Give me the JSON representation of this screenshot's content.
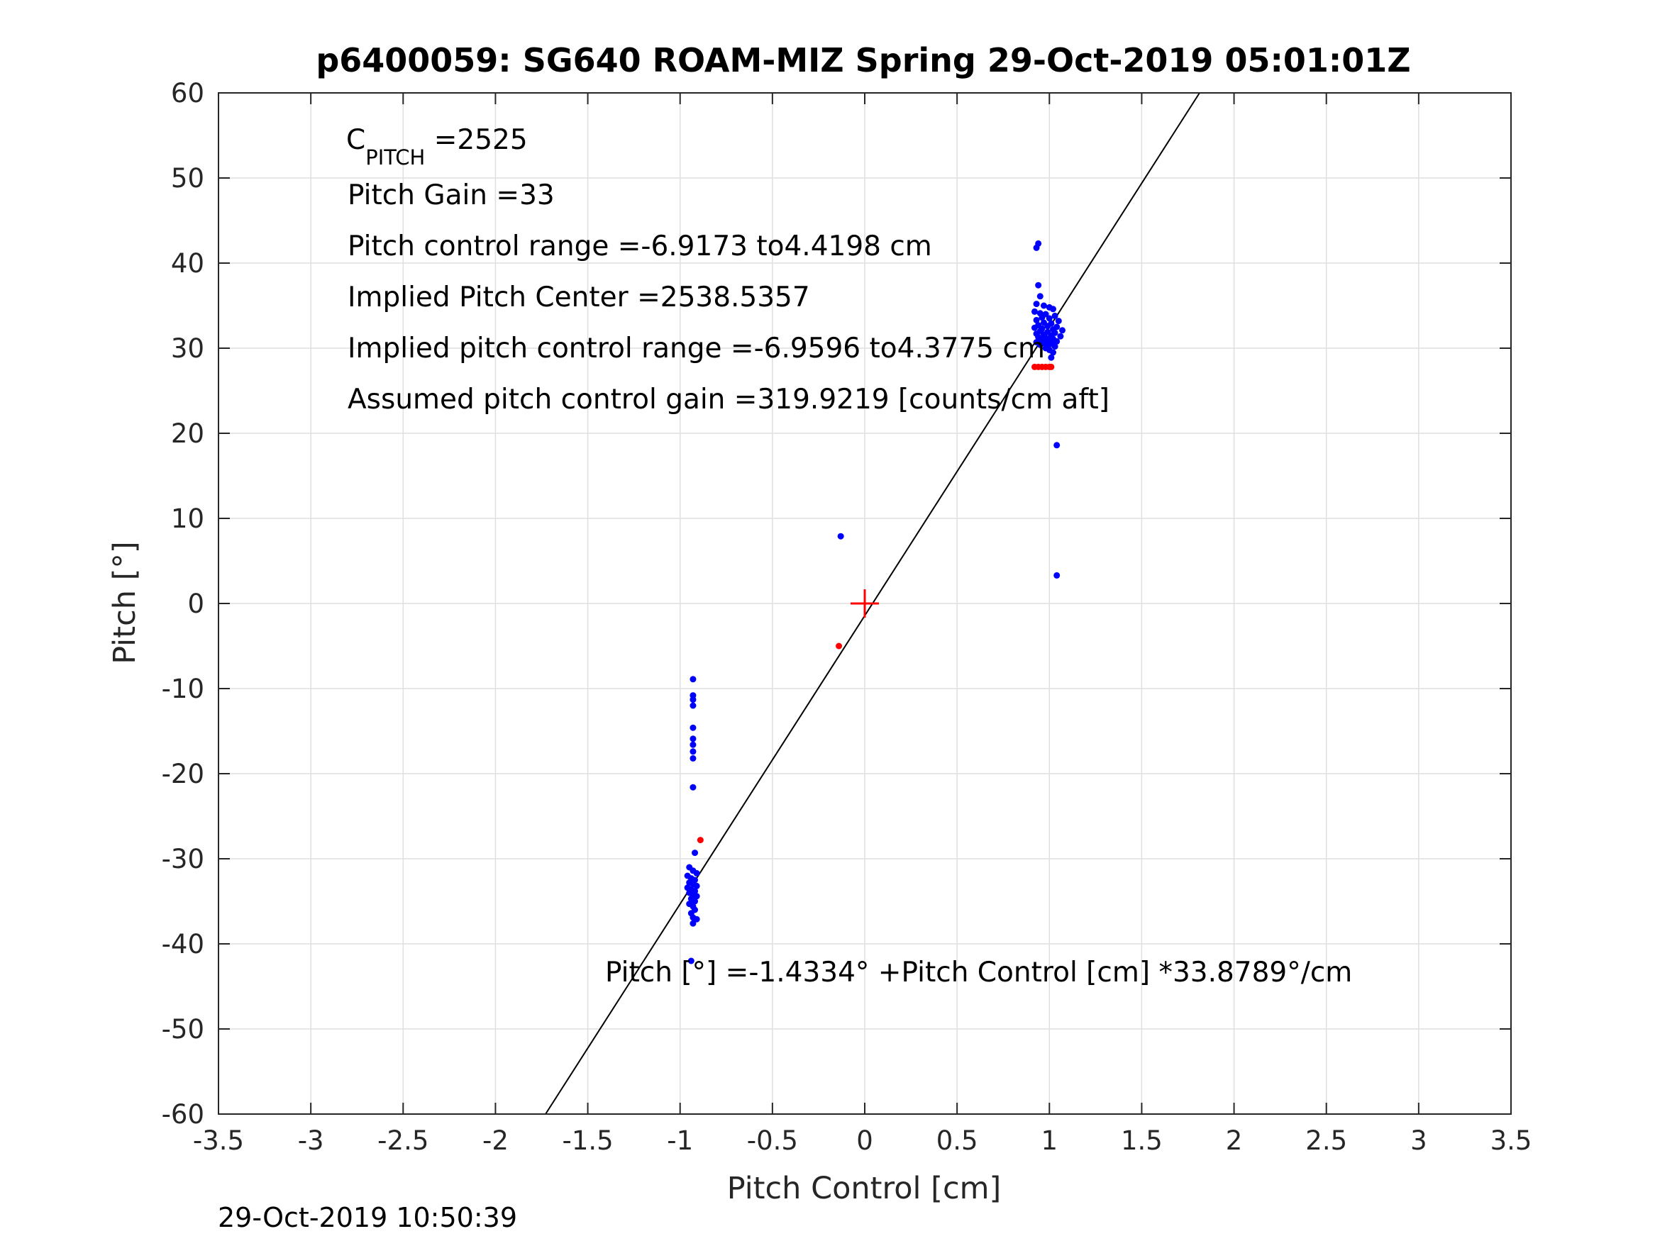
{
  "chart_data": {
    "type": "scatter",
    "title": "p6400059: SG640 ROAM-MIZ Spring 29-Oct-2019 05:01:01Z",
    "xlabel": "Pitch Control [cm]",
    "ylabel": "Pitch [°]",
    "xlim": [
      -3.5,
      3.5
    ],
    "ylim": [
      -60,
      60
    ],
    "grid": true,
    "x_ticks": [
      -3.5,
      -3,
      -2.5,
      -2,
      -1.5,
      -1,
      -0.5,
      0,
      0.5,
      1,
      1.5,
      2,
      2.5,
      3,
      3.5
    ],
    "y_ticks": [
      -60,
      -50,
      -40,
      -30,
      -20,
      -10,
      0,
      10,
      20,
      30,
      40,
      50,
      60
    ],
    "x_tick_labels": [
      "-3.5",
      "-3",
      "-2.5",
      "-2",
      "-1.5",
      "-1",
      "-0.5",
      "0",
      "0.5",
      "1",
      "1.5",
      "2",
      "2.5",
      "3",
      "3.5"
    ],
    "y_tick_labels": [
      "-60",
      "-50",
      "-40",
      "-30",
      "-20",
      "-10",
      "0",
      "10",
      "20",
      "30",
      "40",
      "50",
      "60"
    ],
    "series": [
      {
        "color": "#0000ff",
        "points": [
          [
            0.94,
            42.3
          ],
          [
            0.93,
            41.8
          ],
          [
            0.94,
            37.4
          ],
          [
            0.95,
            36.1
          ],
          [
            0.93,
            35.2
          ],
          [
            0.97,
            35.0
          ],
          [
            1.0,
            34.8
          ],
          [
            1.02,
            34.6
          ],
          [
            0.92,
            34.3
          ],
          [
            0.95,
            34.1
          ],
          [
            0.98,
            34.0
          ],
          [
            1.03,
            33.8
          ],
          [
            0.96,
            33.6
          ],
          [
            1.0,
            33.5
          ],
          [
            0.93,
            33.3
          ],
          [
            1.05,
            33.2
          ],
          [
            0.97,
            33.0
          ],
          [
            1.01,
            32.9
          ],
          [
            0.94,
            32.7
          ],
          [
            0.99,
            32.6
          ],
          [
            1.04,
            32.5
          ],
          [
            0.92,
            32.4
          ],
          [
            0.96,
            32.3
          ],
          [
            1.02,
            32.2
          ],
          [
            1.07,
            32.1
          ],
          [
            0.95,
            32.0
          ],
          [
            0.99,
            31.9
          ],
          [
            1.03,
            31.8
          ],
          [
            0.93,
            31.7
          ],
          [
            0.97,
            31.6
          ],
          [
            1.01,
            31.5
          ],
          [
            1.06,
            31.4
          ],
          [
            0.94,
            31.3
          ],
          [
            0.98,
            31.2
          ],
          [
            1.02,
            31.1
          ],
          [
            0.96,
            31.0
          ],
          [
            1.0,
            30.9
          ],
          [
            1.04,
            30.8
          ],
          [
            0.93,
            30.7
          ],
          [
            0.97,
            30.6
          ],
          [
            1.01,
            30.5
          ],
          [
            0.95,
            30.4
          ],
          [
            0.99,
            30.3
          ],
          [
            1.03,
            30.2
          ],
          [
            0.98,
            30.0
          ],
          [
            1.0,
            29.8
          ],
          [
            1.02,
            29.5
          ],
          [
            1.01,
            28.9
          ],
          [
            1.04,
            18.6
          ],
          [
            1.04,
            3.3
          ],
          [
            -0.13,
            7.9
          ],
          [
            -0.93,
            -8.9
          ],
          [
            -0.93,
            -10.8
          ],
          [
            -0.93,
            -11.3
          ],
          [
            -0.93,
            -12.0
          ],
          [
            -0.93,
            -14.6
          ],
          [
            -0.93,
            -15.9
          ],
          [
            -0.93,
            -16.6
          ],
          [
            -0.93,
            -17.4
          ],
          [
            -0.93,
            -18.2
          ],
          [
            -0.93,
            -21.6
          ],
          [
            -0.92,
            -29.3
          ],
          [
            -0.95,
            -31.0
          ],
          [
            -0.93,
            -31.4
          ],
          [
            -0.91,
            -31.7
          ],
          [
            -0.96,
            -32.0
          ],
          [
            -0.94,
            -32.3
          ],
          [
            -0.92,
            -32.5
          ],
          [
            -0.95,
            -32.8
          ],
          [
            -0.93,
            -33.0
          ],
          [
            -0.91,
            -33.2
          ],
          [
            -0.96,
            -33.4
          ],
          [
            -0.94,
            -33.6
          ],
          [
            -0.92,
            -33.8
          ],
          [
            -0.95,
            -34.0
          ],
          [
            -0.93,
            -34.2
          ],
          [
            -0.91,
            -34.4
          ],
          [
            -0.94,
            -34.7
          ],
          [
            -0.92,
            -35.0
          ],
          [
            -0.95,
            -35.3
          ],
          [
            -0.93,
            -35.6
          ],
          [
            -0.92,
            -36.0
          ],
          [
            -0.94,
            -36.4
          ],
          [
            -0.93,
            -36.9
          ],
          [
            -0.91,
            -37.1
          ],
          [
            -0.93,
            -37.6
          ],
          [
            -0.94,
            -42.0
          ]
        ]
      },
      {
        "color": "#ff0000",
        "points": [
          [
            0.92,
            27.8
          ],
          [
            0.94,
            27.8
          ],
          [
            0.96,
            27.8
          ],
          [
            0.98,
            27.8
          ],
          [
            1.0,
            27.8
          ],
          [
            1.01,
            27.8
          ],
          [
            -0.14,
            -5.0
          ],
          [
            -0.89,
            -27.8
          ]
        ]
      }
    ],
    "fit_line": {
      "intercept": -1.4334,
      "slope": 33.8789,
      "color": "#000000"
    },
    "center_marker": {
      "x": 0,
      "y": 0,
      "color": "#ff0000"
    },
    "annotations": {
      "c_pitch_main": "C",
      "c_pitch_sub": "PITCH",
      "c_pitch_value": " =2525",
      "pitch_gain": "Pitch Gain =33",
      "control_range": "Pitch control range =-6.9173 to4.4198 cm",
      "implied_center": "Implied Pitch Center =2538.5357",
      "implied_range": "Implied pitch control range =-6.9596 to4.3775 cm",
      "assumed_gain": "Assumed pitch control gain =319.9219 [counts/cm aft]",
      "fit_equation": "Pitch [°] =-1.4334° +Pitch Control [cm] *33.8789°/cm"
    },
    "timestamp": "29-Oct-2019 10:50:39"
  }
}
